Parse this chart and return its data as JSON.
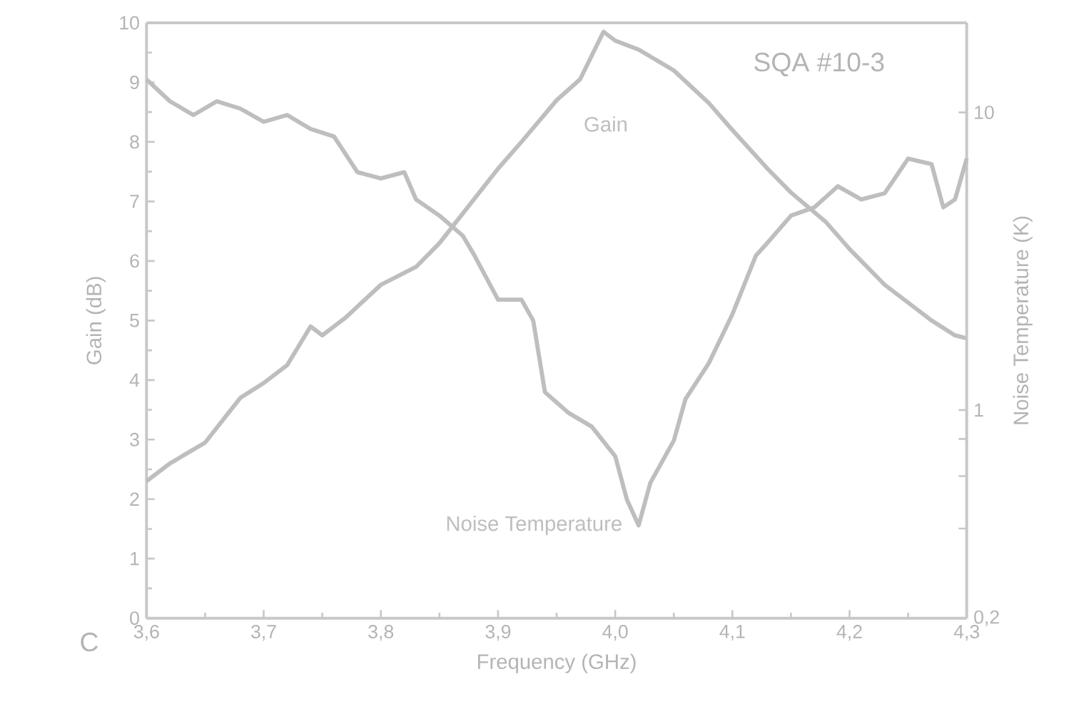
{
  "chart_data": {
    "type": "line",
    "xlabel": "Frequency (GHz)",
    "ylabel": "Gain (dB)",
    "y2label": "Noise Temperature (K)",
    "xlim": [
      3.6,
      4.3
    ],
    "xticks": [
      {
        "value": 3.6,
        "label": "3,6"
      },
      {
        "value": 3.7,
        "label": "3,7"
      },
      {
        "value": 3.8,
        "label": "3,8"
      },
      {
        "value": 3.9,
        "label": "3,9"
      },
      {
        "value": 4.0,
        "label": "4,0"
      },
      {
        "value": 4.1,
        "label": "4,1"
      },
      {
        "value": 4.2,
        "label": "4,2"
      },
      {
        "value": 4.3,
        "label": "4,3"
      }
    ],
    "ylim": [
      0,
      10
    ],
    "yticks": [
      0,
      1,
      2,
      3,
      4,
      5,
      6,
      7,
      8,
      9,
      10
    ],
    "y2lim": [
      0.2,
      20
    ],
    "y2ticks": [
      {
        "value": 0.2,
        "label": "0,2"
      },
      {
        "value": 0.4,
        "label": null
      },
      {
        "value": 0.6,
        "label": null
      },
      {
        "value": 0.8,
        "label": null
      },
      1,
      10
    ],
    "log": "y2",
    "annotations": [
      "SQA #10-3",
      "C"
    ],
    "series": [
      {
        "name": "Gain",
        "color": "#bebebe",
        "x": [
          3.6,
          3.62,
          3.65,
          3.68,
          3.7,
          3.72,
          3.74,
          3.75,
          3.77,
          3.8,
          3.83,
          3.85,
          3.87,
          3.9,
          3.92,
          3.95,
          3.97,
          3.99,
          4.0,
          4.02,
          4.05,
          4.08,
          4.1,
          4.13,
          4.15,
          4.18,
          4.2,
          4.23,
          4.25,
          4.27,
          4.29,
          4.3
        ],
        "values": [
          2.3,
          2.6,
          2.95,
          3.7,
          3.95,
          4.25,
          4.9,
          4.75,
          5.05,
          5.6,
          5.9,
          6.3,
          6.8,
          7.55,
          8.0,
          8.7,
          9.05,
          9.85,
          9.7,
          9.55,
          9.2,
          8.65,
          8.2,
          7.55,
          7.15,
          6.65,
          6.2,
          5.6,
          5.3,
          5.0,
          4.75,
          4.7
        ]
      },
      {
        "name": "Noise Temperature",
        "color": "#bebebe",
        "axis": "y2",
        "x": [
          3.6,
          3.62,
          3.64,
          3.66,
          3.68,
          3.7,
          3.72,
          3.74,
          3.76,
          3.78,
          3.8,
          3.82,
          3.83,
          3.85,
          3.87,
          3.88,
          3.9,
          3.92,
          3.93,
          3.94,
          3.96,
          3.98,
          4.0,
          4.01,
          4.02,
          4.03,
          4.05,
          4.06,
          4.08,
          4.1,
          4.12,
          4.13,
          4.15,
          4.17,
          4.19,
          4.21,
          4.23,
          4.25,
          4.27,
          4.28,
          4.29,
          4.3
        ],
        "values": [
          12.9,
          10.9,
          9.8,
          10.9,
          10.3,
          9.3,
          9.8,
          8.8,
          8.3,
          6.3,
          6.0,
          6.3,
          5.1,
          4.5,
          3.85,
          3.3,
          2.35,
          2.35,
          2.0,
          1.15,
          0.98,
          0.88,
          0.7,
          0.5,
          0.41,
          0.57,
          0.79,
          1.09,
          1.44,
          2.1,
          3.3,
          3.65,
          4.5,
          4.8,
          5.65,
          5.1,
          5.35,
          7.0,
          6.7,
          4.8,
          5.1,
          7.0
        ]
      }
    ]
  }
}
